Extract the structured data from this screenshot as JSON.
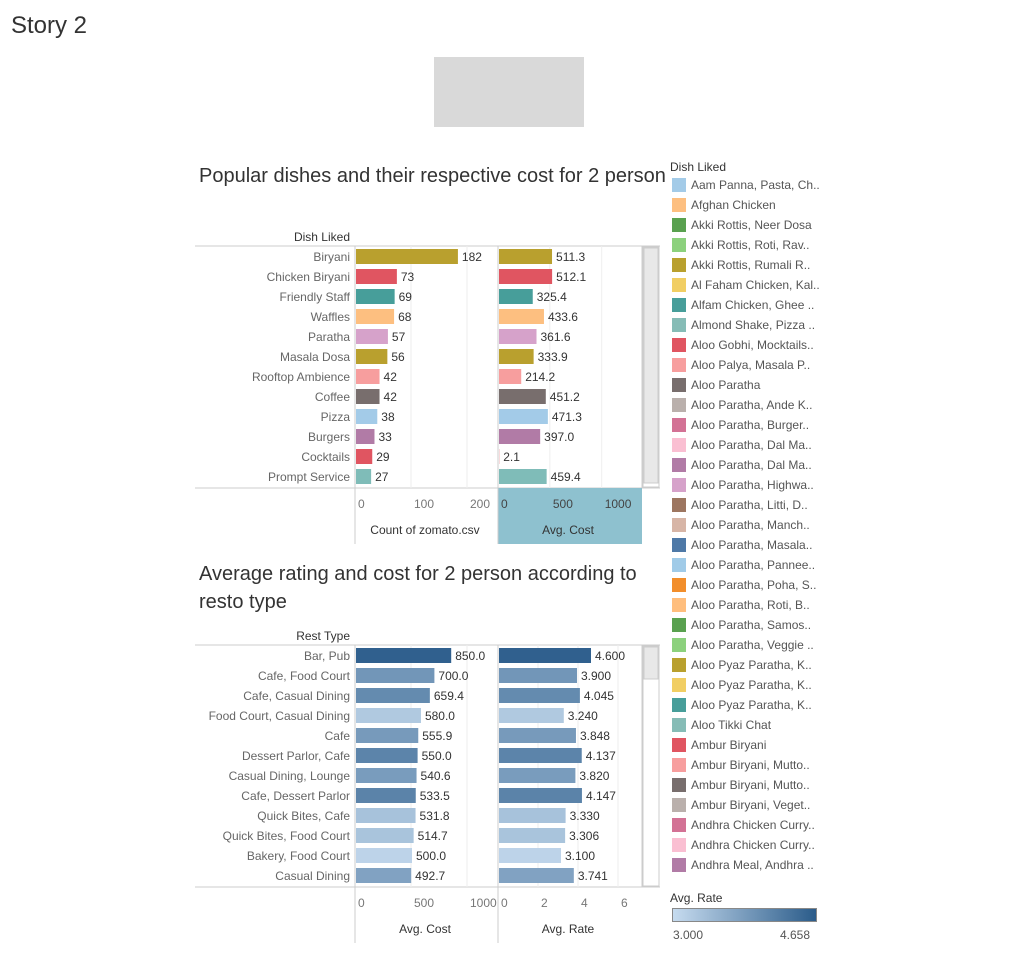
{
  "story": {
    "title": "Story 2"
  },
  "chart_data": [
    {
      "type": "bar",
      "orientation": "horizontal",
      "title": "Popular dishes and their respective cost for 2 person",
      "row_header": "Dish Liked",
      "categories": [
        "Biryani",
        "Chicken Biryani",
        "Friendly Staff",
        "Waffles",
        "Paratha",
        "Masala Dosa",
        "Rooftop Ambience",
        "Coffee",
        "Pizza",
        "Burgers",
        "Cocktails",
        "Prompt Service"
      ],
      "colors": [
        "#b9a02e",
        "#e05561",
        "#479e9a",
        "#fdbf80",
        "#d6a2ca",
        "#b9a02e",
        "#f79e9e",
        "#786e6d",
        "#a3cbe8",
        "#b17ba6",
        "#e05561",
        "#7fbcb8"
      ],
      "series": [
        {
          "name": "Count of zomato.csv",
          "values": [
            182,
            73,
            69,
            68,
            57,
            56,
            42,
            42,
            38,
            33,
            29,
            27
          ],
          "labels": [
            "182",
            "73",
            "69",
            "68",
            "57",
            "56",
            "42",
            "42",
            "38",
            "33",
            "29",
            "27"
          ],
          "xlim": [
            0,
            250
          ],
          "ticks": [
            0,
            100,
            200
          ]
        },
        {
          "name": "Avg. Cost",
          "values": [
            511.3,
            512.1,
            325.4,
            433.6,
            361.6,
            333.9,
            214.2,
            451.2,
            471.3,
            397.0,
            2.1,
            459.4
          ],
          "labels": [
            "511.3",
            "512.1",
            "325.4",
            "433.6",
            "361.6",
            "333.9",
            "214.2",
            "451.2",
            "471.3",
            "397.0",
            "2.1",
            "459.4"
          ],
          "xlim": [
            0,
            1350
          ],
          "ticks": [
            0,
            500,
            1000
          ]
        }
      ]
    },
    {
      "type": "bar",
      "orientation": "horizontal",
      "title": "Average rating and cost for 2 person according to resto type",
      "row_header": "Rest Type",
      "categories": [
        "Bar, Pub",
        "Cafe, Food Court",
        "Cafe, Casual Dining",
        "Food Court, Casual Dining",
        "Cafe",
        "Dessert Parlor, Cafe",
        "Casual Dining, Lounge",
        "Cafe, Dessert Parlor",
        "Quick Bites, Cafe",
        "Quick Bites, Food Court",
        "Bakery, Food Court",
        "Casual Dining"
      ],
      "color_by": "Avg. Rate",
      "color_values": [
        4.6,
        3.9,
        4.045,
        3.24,
        3.848,
        4.137,
        3.82,
        4.147,
        3.33,
        3.306,
        3.1,
        3.741
      ],
      "series": [
        {
          "name": "Avg. Cost",
          "values": [
            850.0,
            700.0,
            659.4,
            580.0,
            555.9,
            550.0,
            540.6,
            533.5,
            531.8,
            514.7,
            500.0,
            492.7
          ],
          "labels": [
            "850.0",
            "700.0",
            "659.4",
            "580.0",
            "555.9",
            "550.0",
            "540.6",
            "533.5",
            "531.8",
            "514.7",
            "500.0",
            "492.7"
          ],
          "xlim": [
            0,
            1250
          ],
          "ticks": [
            0,
            500,
            1000
          ]
        },
        {
          "name": "Avg. Rate",
          "values": [
            4.6,
            3.9,
            4.045,
            3.24,
            3.848,
            4.137,
            3.82,
            4.147,
            3.33,
            3.306,
            3.1,
            3.741
          ],
          "labels": [
            "4.600",
            "3.900",
            "4.045",
            "3.240",
            "3.848",
            "4.137",
            "3.820",
            "4.147",
            "3.330",
            "3.306",
            "3.100",
            "3.741"
          ],
          "xlim": [
            0,
            7
          ],
          "ticks": [
            0,
            2,
            4,
            6
          ]
        }
      ]
    }
  ],
  "legend": {
    "title": "Dish Liked",
    "items": [
      {
        "label": "Aam Panna, Pasta, Ch..",
        "color": "#a3cbe8"
      },
      {
        "label": "Afghan Chicken",
        "color": "#fdbf80"
      },
      {
        "label": "Akki Rottis, Neer Dosa",
        "color": "#59a14f"
      },
      {
        "label": "Akki Rottis, Roti, Rav..",
        "color": "#8cd17d"
      },
      {
        "label": "Akki Rottis, Rumali R..",
        "color": "#b9a02e"
      },
      {
        "label": "Al Faham Chicken, Kal..",
        "color": "#f1ce63"
      },
      {
        "label": "Alfam Chicken, Ghee ..",
        "color": "#479e9a"
      },
      {
        "label": "Almond Shake, Pizza ..",
        "color": "#86bcb6"
      },
      {
        "label": "Aloo Gobhi, Mocktails..",
        "color": "#e05561"
      },
      {
        "label": "Aloo Palya, Masala P..",
        "color": "#f79e9e"
      },
      {
        "label": "Aloo Paratha",
        "color": "#786e6d"
      },
      {
        "label": "Aloo Paratha, Ande K..",
        "color": "#bab0ac"
      },
      {
        "label": "Aloo Paratha, Burger..",
        "color": "#d37295"
      },
      {
        "label": "Aloo Paratha, Dal Ma..",
        "color": "#fabfd2"
      },
      {
        "label": "Aloo Paratha, Dal Ma..",
        "color": "#b17ba6"
      },
      {
        "label": "Aloo Paratha, Highwa..",
        "color": "#d6a2ca"
      },
      {
        "label": "Aloo Paratha, Litti, D..",
        "color": "#9d7660"
      },
      {
        "label": "Aloo Paratha, Manch..",
        "color": "#d7b5a6"
      },
      {
        "label": "Aloo Paratha, Masala..",
        "color": "#4e79a7"
      },
      {
        "label": "Aloo Paratha, Pannee..",
        "color": "#a0cbe8"
      },
      {
        "label": "Aloo Paratha, Poha, S..",
        "color": "#f28e2b"
      },
      {
        "label": "Aloo Paratha, Roti, B..",
        "color": "#ffbe7d"
      },
      {
        "label": "Aloo Paratha, Samos..",
        "color": "#59a14f"
      },
      {
        "label": "Aloo Paratha, Veggie ..",
        "color": "#8cd17d"
      },
      {
        "label": "Aloo Pyaz Paratha, K..",
        "color": "#b9a02e"
      },
      {
        "label": "Aloo Pyaz Paratha, K..",
        "color": "#f1ce63"
      },
      {
        "label": "Aloo Pyaz Paratha, K..",
        "color": "#479e9a"
      },
      {
        "label": "Aloo Tikki Chat",
        "color": "#86bcb6"
      },
      {
        "label": "Ambur Biryani",
        "color": "#e05561"
      },
      {
        "label": "Ambur Biryani, Mutto..",
        "color": "#f79e9e"
      },
      {
        "label": "Ambur Biryani, Mutto..",
        "color": "#786e6d"
      },
      {
        "label": "Ambur Biryani, Veget..",
        "color": "#bab0ac"
      },
      {
        "label": "Andhra Chicken Curry..",
        "color": "#d37295"
      },
      {
        "label": "Andhra Chicken Curry..",
        "color": "#fabfd2"
      },
      {
        "label": "Andhra Meal, Andhra ..",
        "color": "#b17ba6"
      }
    ]
  },
  "rate_legend": {
    "title": "Avg. Rate",
    "min": "3.000",
    "max": "4.658",
    "color_min": "#c6dbef",
    "color_max": "#2b5c8a"
  }
}
